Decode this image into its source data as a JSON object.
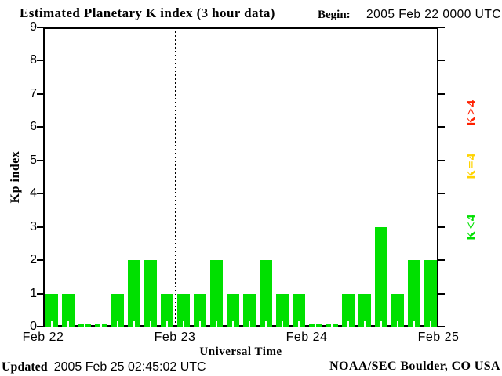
{
  "header": {
    "title": "Estimated Planetary K index (3 hour data)",
    "begin_label": "Begin:",
    "begin_value": "2005 Feb 22 0000 UTC"
  },
  "chart_data": {
    "type": "bar",
    "title": "Estimated Planetary K index (3 hour data)",
    "xlabel": "Universal Time",
    "ylabel": "Kp index",
    "ylim": [
      0,
      9
    ],
    "yticks": [
      0,
      1,
      2,
      3,
      4,
      5,
      6,
      7,
      8,
      9
    ],
    "bars_per_day": 8,
    "hours_per_bar": 3,
    "day_labels": [
      "Feb 22",
      "Feb 23",
      "Feb 24",
      "Feb 25"
    ],
    "values": [
      1,
      1,
      0,
      0,
      1,
      2,
      2,
      1,
      1,
      1,
      2,
      1,
      1,
      2,
      1,
      1,
      0,
      0,
      1,
      1,
      3,
      1,
      2,
      2
    ],
    "bar_color": "#00e000",
    "grid": "vertical-dotted-at-day-boundaries",
    "legend_position": "right-outside-rotated"
  },
  "legend": {
    "items": [
      {
        "label": "K>4",
        "color": "#ff2000"
      },
      {
        "label": "K=4",
        "color": "#ffd300"
      },
      {
        "label": "K<4",
        "color": "#00e000"
      }
    ]
  },
  "footer": {
    "updated_label": "Updated",
    "updated_value": "2005 Feb 25 02:45:02 UTC",
    "credit": "NOAA/SEC Boulder, CO USA"
  }
}
